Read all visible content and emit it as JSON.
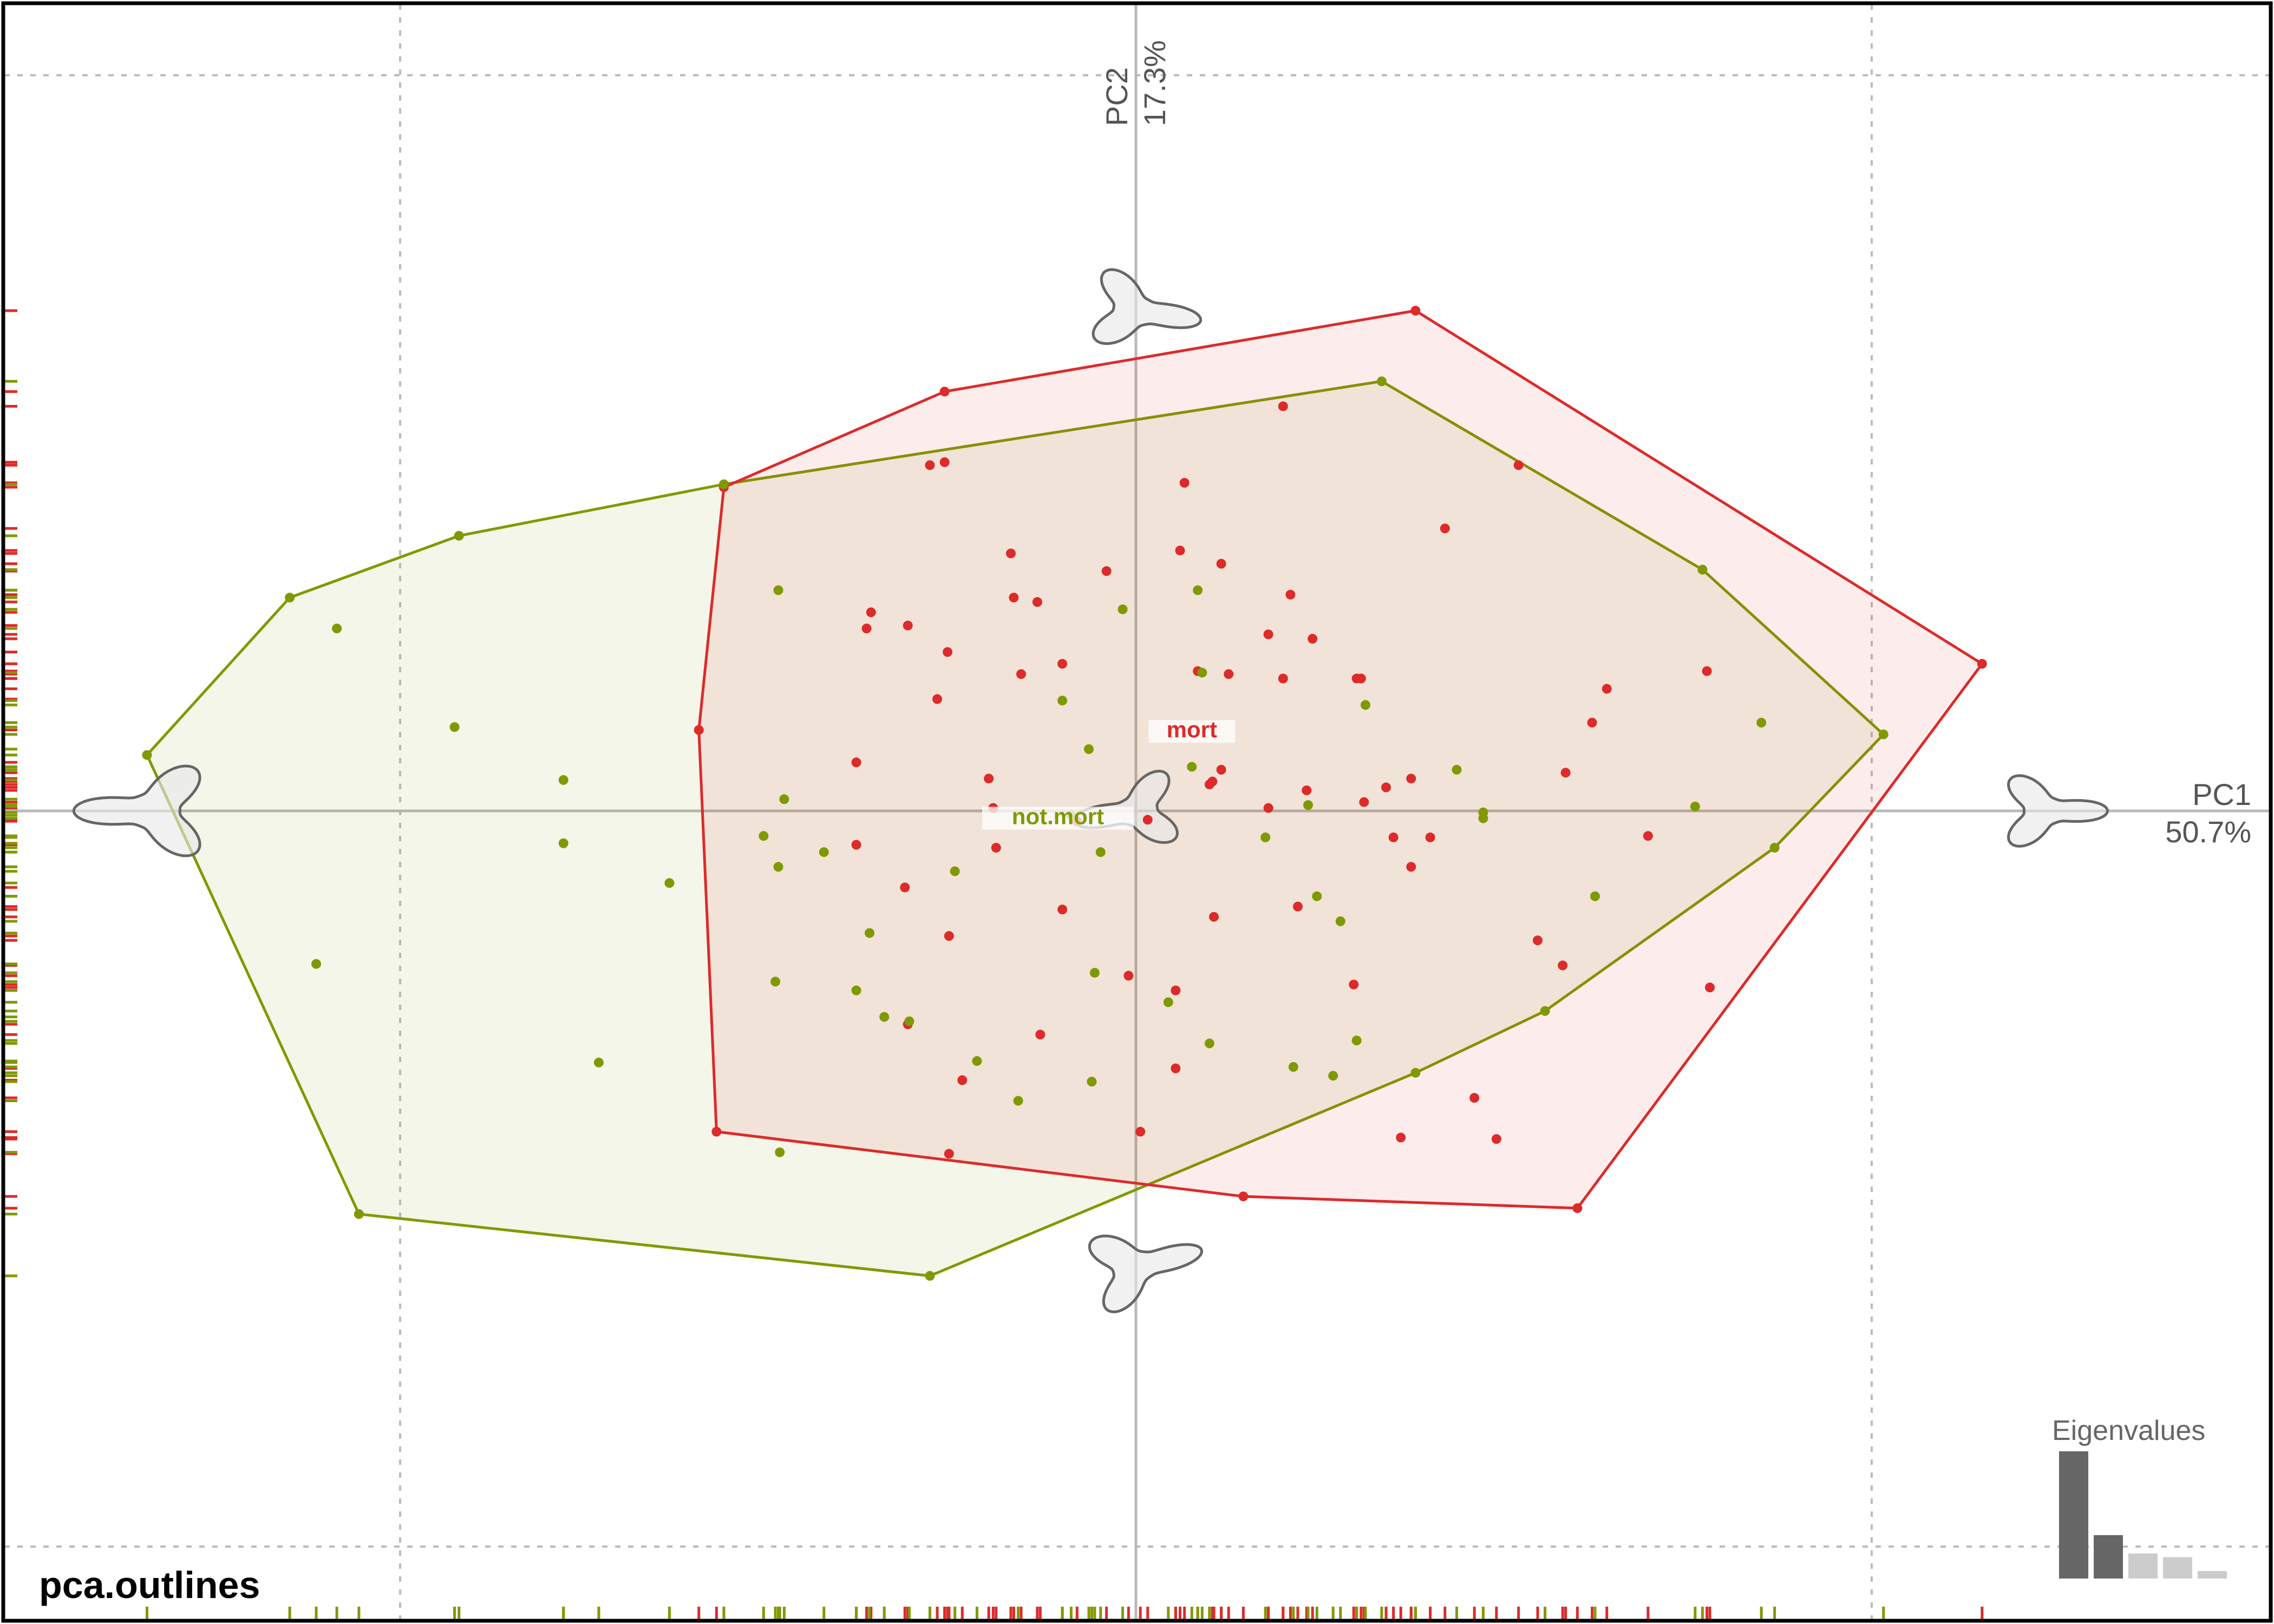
{
  "chart_data": {
    "type": "scatter",
    "title": "pca.outlines",
    "axes": {
      "x": {
        "name": "PC1",
        "variance": "50.7%"
      },
      "y": {
        "name": "PC2",
        "variance": "17.3%"
      }
    },
    "xlim": [
      -0.77,
      0.77
    ],
    "ylim": [
      -0.55,
      0.55
    ],
    "grid": true,
    "rugs": true,
    "legend_placement": "labels at group centroids",
    "colors": {
      "mort": "#dd2a2a",
      "not.mort": "#7f9a00",
      "frame": "#000000"
    },
    "groups": [
      {
        "name": "mort",
        "color": "#dd2a2a",
        "hull": [
          [
            -0.28,
            0.22
          ],
          [
            -0.13,
            0.285
          ],
          [
            0.19,
            0.34
          ],
          [
            0.575,
            0.1
          ],
          [
            0.3,
            -0.27
          ],
          [
            0.073,
            -0.262
          ],
          [
            -0.285,
            -0.218
          ],
          [
            -0.297,
            0.055
          ]
        ],
        "points": [
          [
            -0.14,
            0.235
          ],
          [
            -0.13,
            0.237
          ],
          [
            0.1,
            0.275
          ],
          [
            0.033,
            0.223
          ],
          [
            -0.085,
            0.175
          ],
          [
            0.03,
            0.177
          ],
          [
            0.058,
            0.168
          ],
          [
            0.21,
            0.192
          ],
          [
            0.26,
            0.235
          ],
          [
            -0.083,
            0.145
          ],
          [
            -0.067,
            0.142
          ],
          [
            -0.02,
            0.163
          ],
          [
            0.105,
            0.147
          ],
          [
            0.12,
            0.117
          ],
          [
            -0.18,
            0.135
          ],
          [
            -0.183,
            0.124
          ],
          [
            -0.155,
            0.126
          ],
          [
            -0.128,
            0.108
          ],
          [
            -0.078,
            0.093
          ],
          [
            -0.05,
            0.1
          ],
          [
            0.09,
            0.12
          ],
          [
            0.1,
            0.09
          ],
          [
            0.042,
            0.095
          ],
          [
            0.063,
            0.093
          ],
          [
            0.15,
            0.09
          ],
          [
            0.153,
            0.09
          ],
          [
            0.32,
            0.083
          ],
          [
            0.388,
            0.095
          ],
          [
            0.31,
            0.06
          ],
          [
            -0.135,
            0.076
          ],
          [
            -0.19,
            0.033
          ],
          [
            0.052,
            0.02
          ],
          [
            0.058,
            0.028
          ],
          [
            0.05,
            0.018
          ],
          [
            0.17,
            0.016
          ],
          [
            0.187,
            0.022
          ],
          [
            -0.1,
            0.022
          ],
          [
            -0.097,
            0.002
          ],
          [
            -0.04,
            -0.007
          ],
          [
            0.008,
            -0.006
          ],
          [
            0.09,
            0.002
          ],
          [
            0.116,
            0.014
          ],
          [
            0.155,
            0.006
          ],
          [
            0.292,
            0.026
          ],
          [
            -0.095,
            -0.025
          ],
          [
            -0.19,
            -0.023
          ],
          [
            0.175,
            -0.018
          ],
          [
            0.2,
            -0.018
          ],
          [
            0.187,
            -0.038
          ],
          [
            0.348,
            -0.017
          ],
          [
            -0.157,
            -0.052
          ],
          [
            -0.05,
            -0.067
          ],
          [
            0.053,
            -0.072
          ],
          [
            0.11,
            -0.065
          ],
          [
            -0.127,
            -0.085
          ],
          [
            0.273,
            -0.088
          ],
          [
            0.29,
            -0.105
          ],
          [
            0.39,
            -0.12
          ],
          [
            -0.005,
            -0.112
          ],
          [
            0.027,
            -0.122
          ],
          [
            0.148,
            -0.118
          ],
          [
            -0.065,
            -0.152
          ],
          [
            -0.155,
            -0.145
          ],
          [
            -0.118,
            -0.183
          ],
          [
            0.027,
            -0.175
          ],
          [
            0.23,
            -0.195
          ],
          [
            0.245,
            -0.223
          ],
          [
            0.18,
            -0.222
          ],
          [
            0.003,
            -0.218
          ],
          [
            -0.127,
            -0.233
          ]
        ]
      },
      {
        "name": "not.mort",
        "color": "#7f9a00",
        "hull": [
          [
            -0.672,
            0.038
          ],
          [
            -0.575,
            0.145
          ],
          [
            -0.46,
            0.187
          ],
          [
            -0.28,
            0.222
          ],
          [
            0.167,
            0.292
          ],
          [
            0.385,
            0.164
          ],
          [
            0.508,
            0.052
          ],
          [
            0.434,
            -0.025
          ],
          [
            0.278,
            -0.136
          ],
          [
            0.19,
            -0.178
          ],
          [
            -0.14,
            -0.316
          ],
          [
            -0.528,
            -0.274
          ]
        ],
        "points": [
          [
            -0.243,
            0.15
          ],
          [
            -0.009,
            0.137
          ],
          [
            0.042,
            0.15
          ],
          [
            -0.543,
            0.124
          ],
          [
            -0.463,
            0.057
          ],
          [
            -0.389,
            0.021
          ],
          [
            -0.239,
            0.008
          ],
          [
            0.045,
            0.094
          ],
          [
            -0.05,
            0.075
          ],
          [
            0.156,
            0.072
          ],
          [
            -0.032,
            0.042
          ],
          [
            0.038,
            0.03
          ],
          [
            0.218,
            0.028
          ],
          [
            0.117,
            0.004
          ],
          [
            0.236,
            -0.001
          ],
          [
            0.236,
            -0.005
          ],
          [
            0.425,
            0.06
          ],
          [
            0.38,
            0.003
          ],
          [
            -0.044,
            -0.003
          ],
          [
            -0.389,
            -0.022
          ],
          [
            -0.253,
            -0.017
          ],
          [
            -0.212,
            -0.028
          ],
          [
            -0.024,
            -0.028
          ],
          [
            -0.317,
            -0.049
          ],
          [
            -0.243,
            -0.038
          ],
          [
            -0.123,
            -0.041
          ],
          [
            0.088,
            -0.018
          ],
          [
            0.123,
            -0.058
          ],
          [
            0.139,
            -0.075
          ],
          [
            0.312,
            -0.058
          ],
          [
            -0.181,
            -0.083
          ],
          [
            -0.557,
            -0.104
          ],
          [
            -0.245,
            -0.116
          ],
          [
            -0.19,
            -0.122
          ],
          [
            -0.028,
            -0.11
          ],
          [
            0.022,
            -0.13
          ],
          [
            -0.171,
            -0.14
          ],
          [
            -0.154,
            -0.143
          ],
          [
            0.05,
            -0.158
          ],
          [
            0.15,
            -0.156
          ],
          [
            -0.108,
            -0.17
          ],
          [
            -0.365,
            -0.171
          ],
          [
            0.107,
            -0.174
          ],
          [
            0.134,
            -0.18
          ],
          [
            -0.03,
            -0.184
          ],
          [
            -0.08,
            -0.197
          ],
          [
            -0.242,
            -0.232
          ]
        ]
      }
    ],
    "group_labels": [
      {
        "text": "mort",
        "group": "mort",
        "at": [
          0.038,
          0.05
        ]
      },
      {
        "text": "not.mort",
        "group": "not.mort",
        "at": [
          -0.053,
          -0.009
        ]
      }
    ],
    "morphospace_shapes": [
      {
        "name": "pc1-negative-shape",
        "at": [
          -0.668,
          0.0
        ]
      },
      {
        "name": "pc1-positive-shape",
        "at": [
          0.618,
          0.0
        ]
      },
      {
        "name": "pc2-positive-shape",
        "at": [
          0.0,
          0.34
        ]
      },
      {
        "name": "pc2-negative-shape",
        "at": [
          0.0,
          -0.31
        ]
      },
      {
        "name": "mean-shape",
        "at": [
          0.0,
          0.0
        ]
      }
    ],
    "eigenvalues": {
      "label": "Eigenvalues",
      "values": [
        0.507,
        0.173,
        0.1,
        0.085,
        0.03
      ],
      "highlighted": 2
    }
  }
}
